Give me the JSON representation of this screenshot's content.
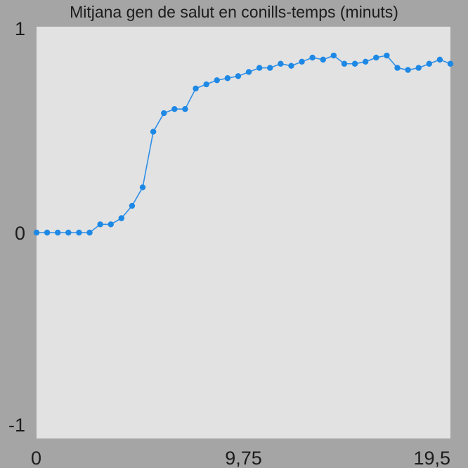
{
  "chart_data": {
    "type": "line",
    "title": "Mitjana gen de salut en conills-temps (minuts)",
    "xlabel": "",
    "ylabel": "",
    "xlim": [
      0,
      19.5
    ],
    "ylim": [
      -1,
      1
    ],
    "x_tick_labels": [
      "0",
      "9,75",
      "19,5"
    ],
    "y_tick_labels": [
      "1",
      "0",
      "-1"
    ],
    "grid": false,
    "legend": "none",
    "colors": {
      "background": "#a5a5a5",
      "plot_area": "#e2e2e2",
      "line": "#2f8fe8",
      "marker": "#1e88e5",
      "text": "#1c1c1c"
    },
    "series": [
      {
        "color": "#1e88e5",
        "x": [
          0,
          0.5,
          1,
          1.5,
          2,
          2.5,
          3,
          3.5,
          4,
          4.5,
          5,
          5.5,
          6,
          6.5,
          7,
          7.5,
          8,
          8.5,
          9,
          9.5,
          10,
          10.5,
          11,
          11.5,
          12,
          12.5,
          13,
          13.5,
          14,
          14.5,
          15,
          15.5,
          16,
          16.5,
          17,
          17.5,
          18,
          18.5,
          19,
          19.5
        ],
        "y": [
          0,
          0,
          0,
          0,
          0,
          0,
          0.04,
          0.04,
          0.07,
          0.13,
          0.22,
          0.49,
          0.58,
          0.6,
          0.6,
          0.7,
          0.72,
          0.74,
          0.75,
          0.76,
          0.78,
          0.8,
          0.8,
          0.82,
          0.81,
          0.83,
          0.85,
          0.84,
          0.86,
          0.82,
          0.82,
          0.83,
          0.85,
          0.86,
          0.8,
          0.79,
          0.8,
          0.82,
          0.84,
          0.82
        ]
      }
    ]
  }
}
